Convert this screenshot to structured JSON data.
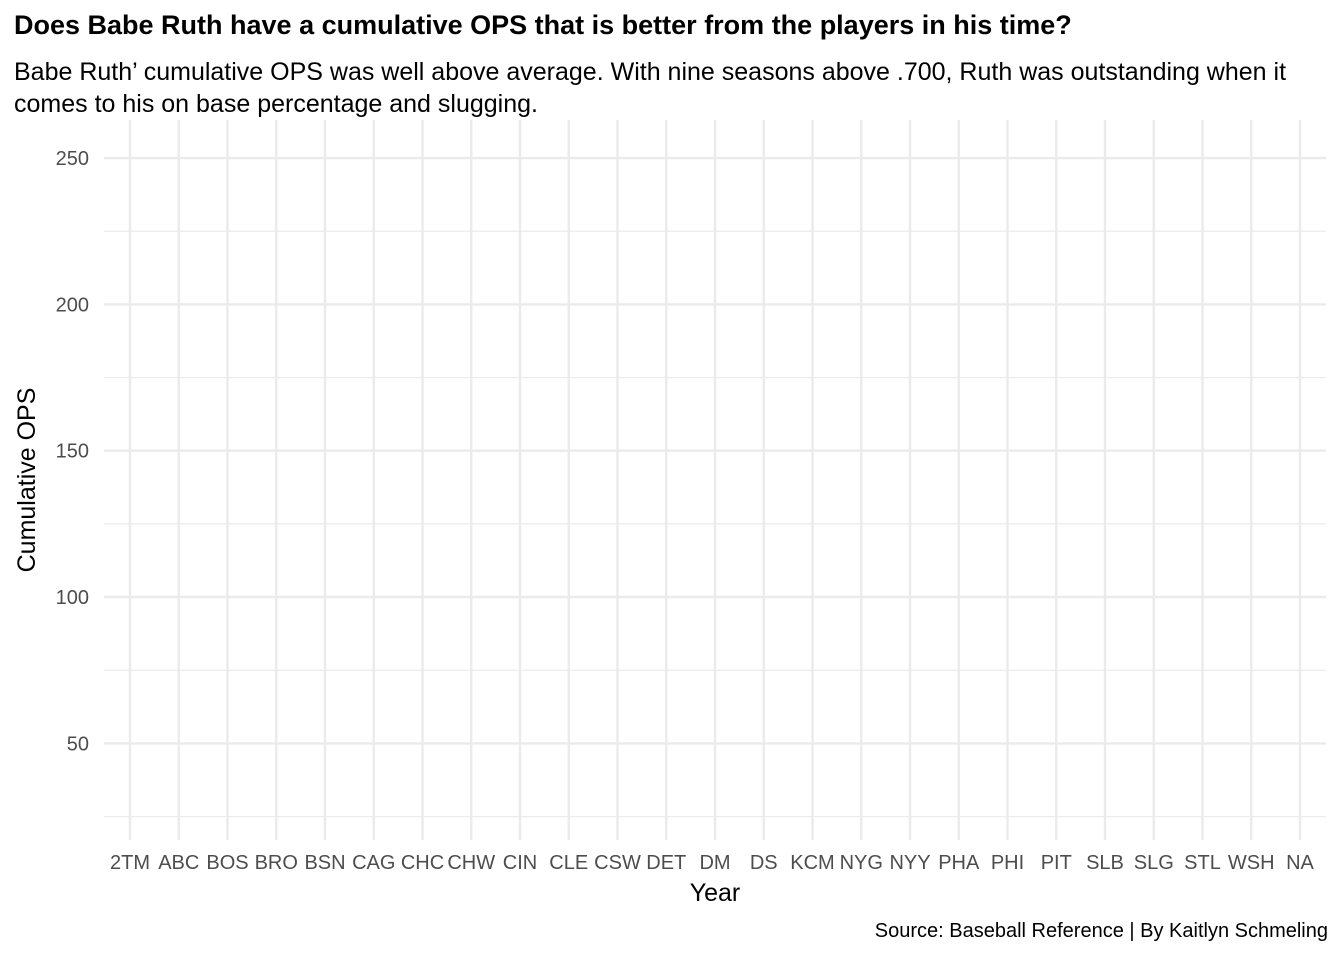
{
  "chart_data": {
    "type": "line",
    "title": "Does Babe Ruth have a cumulative OPS that is better from the players in his time?",
    "subtitle": "Babe Ruth’ cumulative OPS was well above average. With nine seasons above .700, Ruth was outstanding when it comes to his on base percentage and slugging.",
    "caption": "Source: Baseball Reference | By Kaitlyn Schmeling",
    "xlabel": "Year",
    "ylabel": "Cumulative OPS",
    "categories": [
      "2TM",
      "ABC",
      "BOS",
      "BRO",
      "BSN",
      "CAG",
      "CHC",
      "CHW",
      "CIN",
      "CLE",
      "CSW",
      "DET",
      "DM",
      "DS",
      "KCM",
      "NYG",
      "NYY",
      "PHA",
      "PHI",
      "PIT",
      "SLB",
      "SLG",
      "STL",
      "WSH",
      "NA"
    ],
    "yticks": [
      50,
      100,
      150,
      200,
      250
    ],
    "ylim": [
      17,
      263
    ],
    "grid": true,
    "series": []
  }
}
